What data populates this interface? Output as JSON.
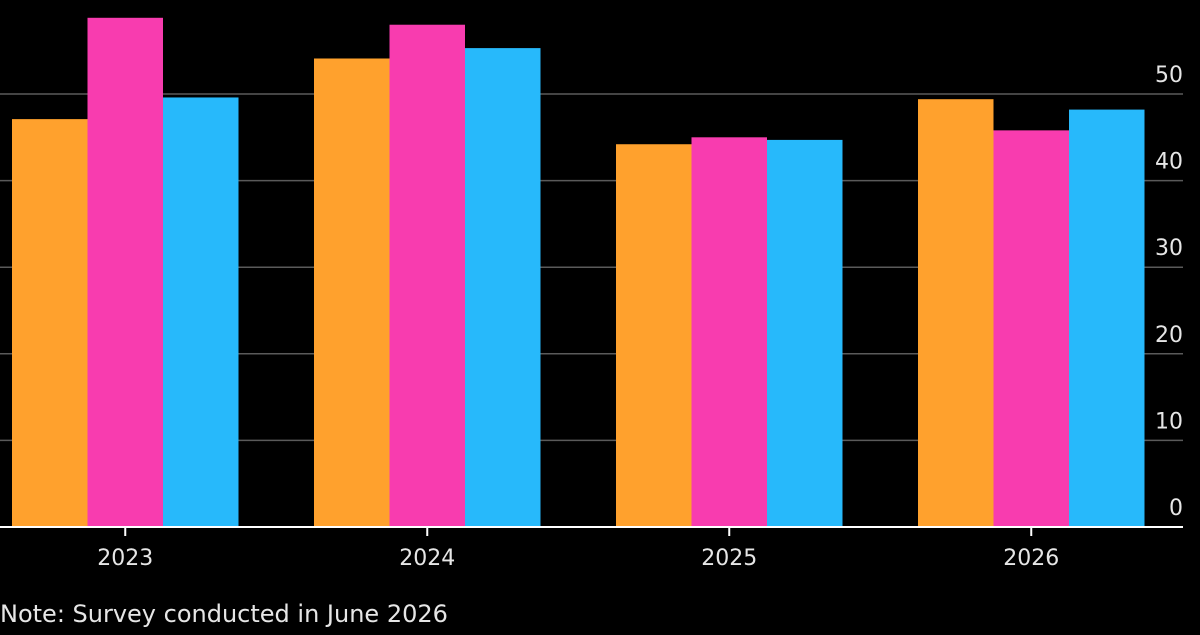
{
  "chart_data": {
    "type": "bar",
    "categories": [
      "2023",
      "2024",
      "2025",
      "2026"
    ],
    "series": [
      {
        "color": "#ffa12d",
        "values": [
          47.1,
          54.1,
          44.2,
          49.4
        ]
      },
      {
        "color": "#f83caf",
        "values": [
          58.8,
          58.0,
          45.0,
          45.8
        ]
      },
      {
        "color": "#27b9fb",
        "values": [
          49.6,
          55.3,
          44.7,
          48.2
        ]
      }
    ],
    "ylim": [
      0,
      60
    ],
    "yticks": [
      0,
      10,
      20,
      30,
      40,
      50
    ],
    "ytick_labels": [
      "0",
      "10",
      "20",
      "30",
      "40",
      "50"
    ],
    "y_axis_side": "right",
    "grid": true,
    "legend": "none",
    "colors": {
      "background": "#000000",
      "gridline": "#5a5a5a",
      "axis": "#ffffff",
      "text": "#e6e6e6"
    }
  },
  "note": "Note: Survey conducted in June 2026"
}
